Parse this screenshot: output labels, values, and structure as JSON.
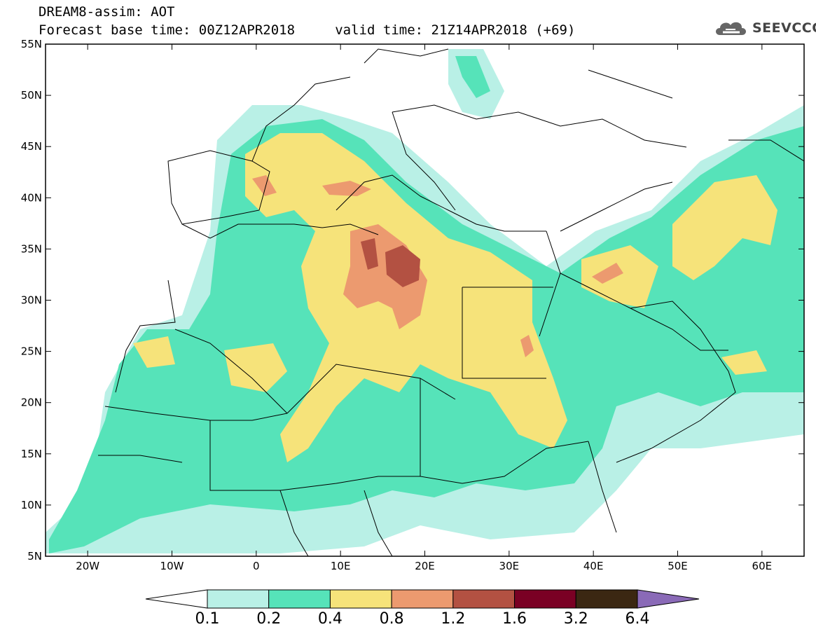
{
  "header": {
    "title_line1": "DREAM8-assim: AOT",
    "title_line2": "Forecast base time: 00Z12APR2018     valid time: 21Z14APR2018 (+69)"
  },
  "logo": {
    "text": "SEEVCCC",
    "icon": "cloud-icon"
  },
  "map": {
    "lon_range": [
      -25,
      65
    ],
    "lat_range": [
      5,
      55
    ],
    "lat_ticks": [
      "55N",
      "50N",
      "45N",
      "40N",
      "35N",
      "30N",
      "25N",
      "20N",
      "15N",
      "10N",
      "5N"
    ],
    "lon_ticks": [
      "20W",
      "10W",
      "0",
      "10E",
      "20E",
      "30E",
      "40E",
      "50E",
      "60E"
    ]
  },
  "colorbar": {
    "labels": [
      "0.1",
      "0.2",
      "0.4",
      "0.8",
      "1.2",
      "1.6",
      "3.2",
      "6.4"
    ],
    "colors": [
      "#ffffff",
      "#b9f0e6",
      "#56e3b9",
      "#f6e37a",
      "#ec9a6f",
      "#b35142",
      "#7a0024",
      "#3b2712",
      "#8a6ab7"
    ]
  },
  "colors": {
    "land": "#ffffff",
    "aot_0_1": "#b9f0e6",
    "aot_0_2": "#56e3b9",
    "aot_0_4": "#f6e37a",
    "aot_0_8": "#ec9a6f",
    "aot_1_2": "#b35142",
    "borders": "#000000"
  }
}
